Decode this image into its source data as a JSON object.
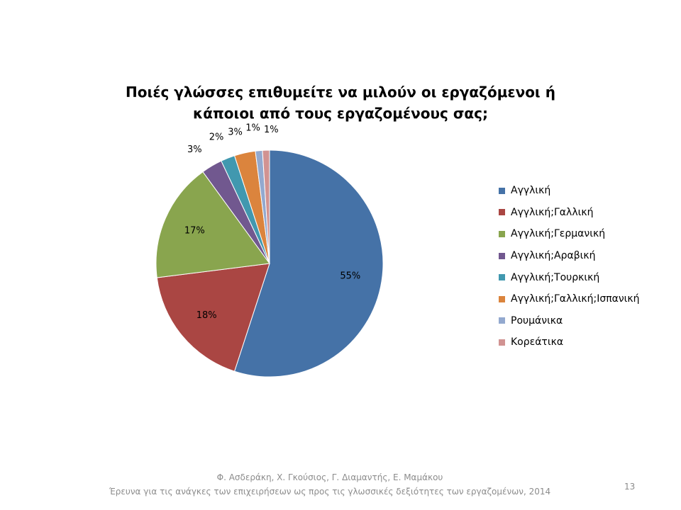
{
  "chart_data": {
    "type": "pie",
    "title_lines": [
      "Ποιές γλώσσες επιθυμείτε να μιλούν οι εργαζόμενοι ή",
      "κάποιοι από τους εργαζομένους σας;"
    ],
    "legend_position": "right",
    "slices": [
      {
        "name": "Αγγλική",
        "value": 55,
        "label": "55%",
        "color": "#4572a7"
      },
      {
        "name": "Αγγλική;Γαλλική",
        "value": 18,
        "label": "18%",
        "color": "#aa4643"
      },
      {
        "name": "Αγγλική;Γερμανική",
        "value": 17,
        "label": "17%",
        "color": "#89a54e"
      },
      {
        "name": "Αγγλική;Αραβική",
        "value": 3,
        "label": "3%",
        "color": "#71588f"
      },
      {
        "name": "Αγγλική;Τουρκική",
        "value": 2,
        "label": "2%",
        "color": "#4198af"
      },
      {
        "name": "Αγγλική;Γαλλική;Ισπανική",
        "value": 3,
        "label": "3%",
        "color": "#db843d"
      },
      {
        "name": "Ρουμάνικα",
        "value": 1,
        "label": "1%",
        "color": "#93a9cf"
      },
      {
        "name": "Κορεάτικα",
        "value": 1,
        "label": "1%",
        "color": "#d19392"
      }
    ]
  },
  "footer": {
    "authors": "Φ. Ασδεράκη, Χ. Γκούσιος, Γ. Διαμαντής, Ε. Μαμάκου",
    "subtitle": "Έρευνα για τις ανάγκες των επιχειρήσεων ως προς τις γλωσσικές δεξιότητες των εργαζομένων, 2014",
    "page_number": "13"
  }
}
